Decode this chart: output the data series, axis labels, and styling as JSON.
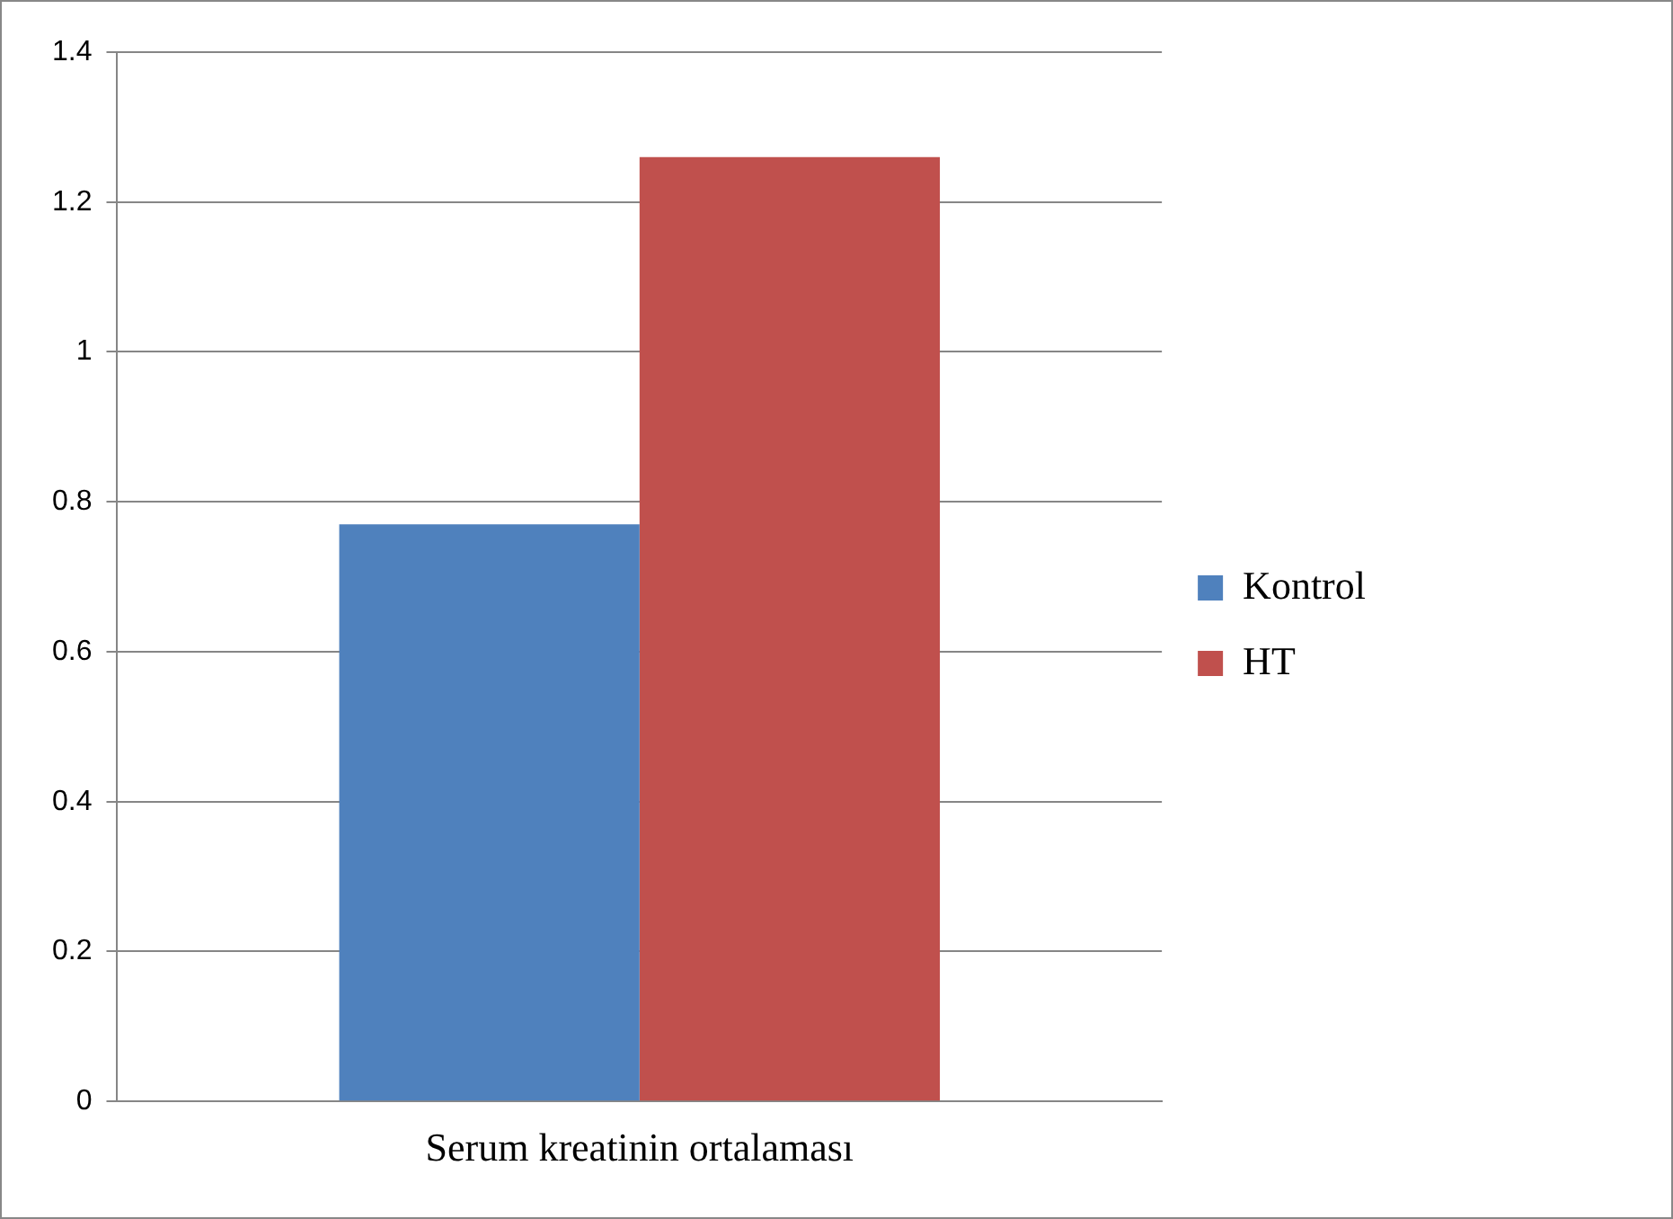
{
  "chart_data": {
    "type": "bar",
    "categories": [
      "Serum kreatinin ortalaması"
    ],
    "series": [
      {
        "name": "Kontrol",
        "color": "#4f81bd",
        "values": [
          0.77
        ]
      },
      {
        "name": "HT",
        "color": "#c0504d",
        "values": [
          1.26
        ]
      }
    ],
    "ylim": [
      0,
      1.4
    ],
    "yticks": [
      0,
      0.2,
      0.4,
      0.6,
      0.8,
      1,
      1.2,
      1.4
    ],
    "grid": "y",
    "legend": "right"
  }
}
